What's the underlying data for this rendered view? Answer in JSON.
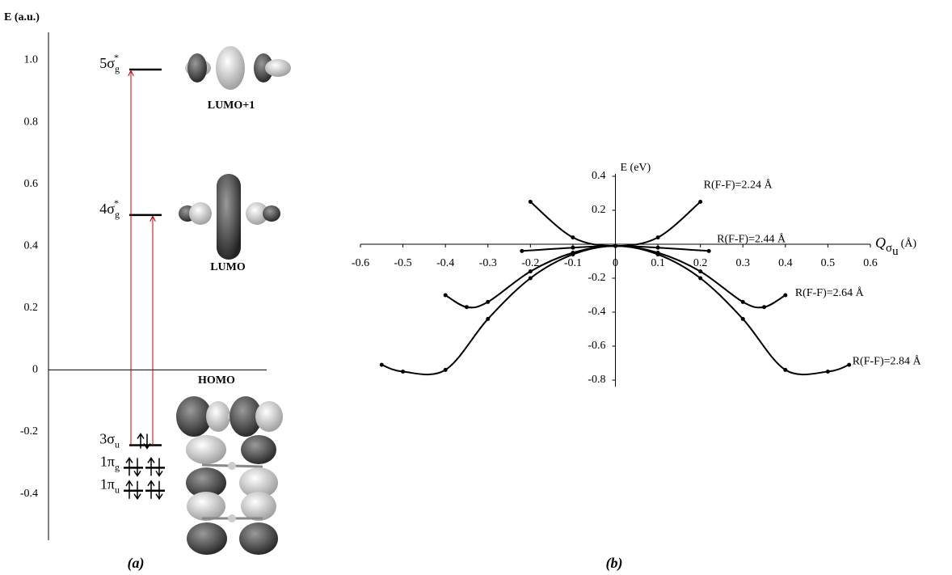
{
  "chart_data": [
    {
      "type": "energy-level",
      "title": "(a)",
      "y_label": "E (a.u.)",
      "ylim": [
        -0.55,
        1.09
      ],
      "yticks": [
        -0.4,
        -0.2,
        0,
        0.2,
        0.4,
        0.6,
        0.8,
        {
          "value": 1,
          "label": "1.0"
        }
      ],
      "levels": [
        {
          "name": "5σ",
          "sub": "g",
          "sup": "*",
          "energy": 0.97
        },
        {
          "name": "4σ",
          "sub": "g",
          "sup": "*",
          "energy": 0.5
        },
        {
          "name": "3σ",
          "sub": "u",
          "energy": -0.243
        },
        {
          "name": "1π",
          "sub": "g",
          "energy": -0.316
        },
        {
          "name": "1π",
          "sub": "u",
          "energy": -0.39
        }
      ],
      "orbital_labels": [
        "LUMO+1",
        "LUMO",
        "HOMO"
      ],
      "arrow_color": "#c00000"
    },
    {
      "type": "line",
      "title": "(b)",
      "y_label": "E (eV)",
      "x_label": {
        "symbol": "Q",
        "sub": "σ",
        "subsub": "u",
        "unit": "(Å)"
      },
      "xlim": [
        -0.6,
        0.6
      ],
      "ylim": [
        -0.8,
        0.4
      ],
      "xticks": [
        -0.6,
        -0.5,
        -0.4,
        -0.3,
        -0.2,
        -0.1,
        0,
        0.1,
        0.2,
        0.3,
        0.4,
        0.5,
        0.6
      ],
      "yticks": [
        -0.8,
        -0.6,
        -0.4,
        -0.2,
        0,
        0.2,
        0.4
      ],
      "series": [
        {
          "name": "R(F-F)=2.24 Å",
          "color": "#000000",
          "x": [
            -0.2,
            -0.1,
            0,
            0.1,
            0.2
          ],
          "values": [
            0.25,
            0.04,
            -0.01,
            0.04,
            0.25
          ]
        },
        {
          "name": "R(F-F)=2.44 Å",
          "color": "#000000",
          "x": [
            -0.22,
            -0.1,
            0,
            0.1,
            0.22
          ],
          "values": [
            -0.04,
            -0.02,
            -0.01,
            -0.02,
            -0.04
          ]
        },
        {
          "name": "R(F-F)=2.64 Å",
          "color": "#000000",
          "x": [
            -0.4,
            -0.35,
            -0.3,
            -0.2,
            -0.1,
            0,
            0.1,
            0.2,
            0.3,
            0.35,
            0.4
          ],
          "values": [
            -0.3,
            -0.37,
            -0.34,
            -0.16,
            -0.05,
            -0.01,
            -0.05,
            -0.16,
            -0.34,
            -0.37,
            -0.3
          ]
        },
        {
          "name": "R(F-F)=2.84 Å",
          "color": "#000000",
          "x": [
            -0.55,
            -0.5,
            -0.4,
            -0.3,
            -0.2,
            -0.1,
            0,
            0.1,
            0.2,
            0.3,
            0.4,
            0.5,
            0.55
          ],
          "values": [
            -0.71,
            -0.75,
            -0.74,
            -0.44,
            -0.2,
            -0.06,
            -0.01,
            -0.06,
            -0.2,
            -0.44,
            -0.74,
            -0.75,
            -0.71
          ]
        }
      ]
    }
  ]
}
